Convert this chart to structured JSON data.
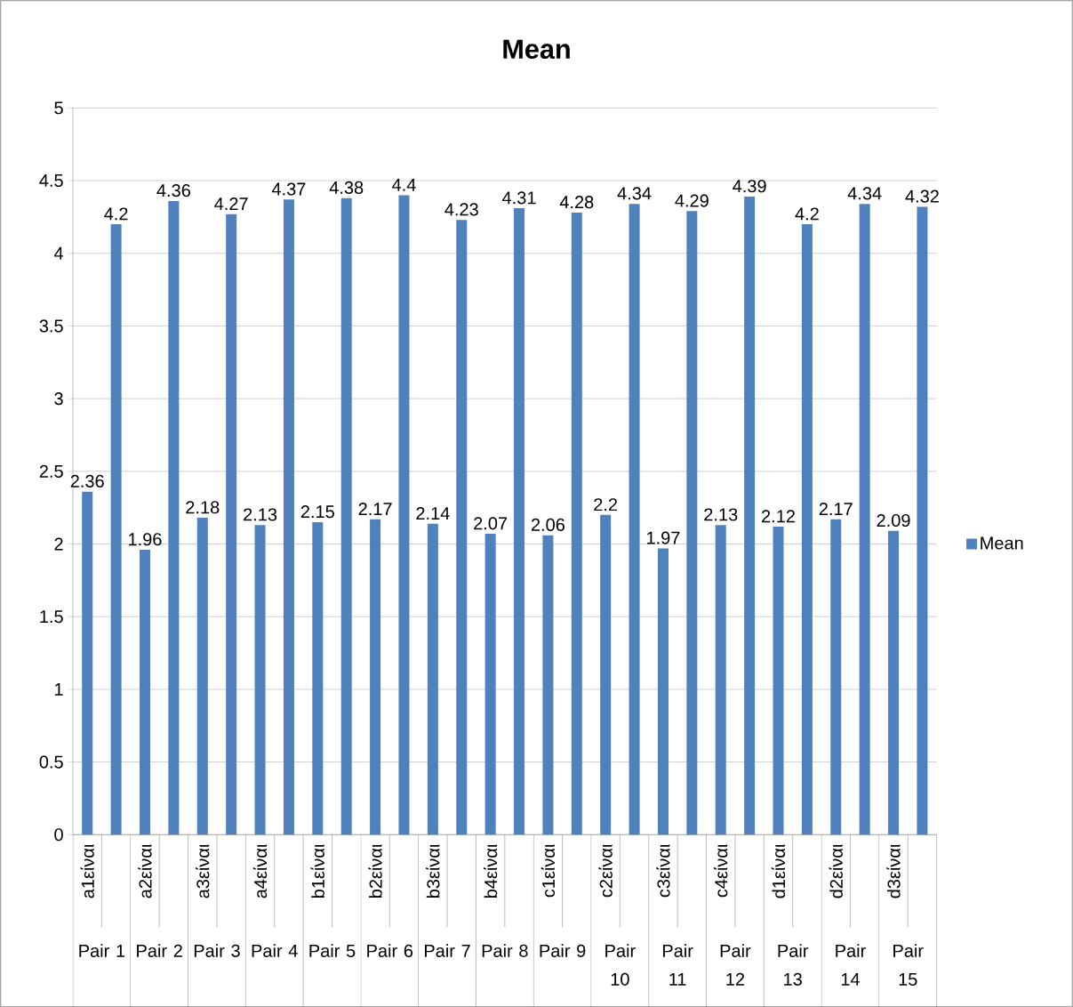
{
  "chart_data": {
    "type": "bar",
    "title": "Mean",
    "categories": [
      "a1είναι",
      null,
      "a2είναι",
      null,
      "a3είναι",
      null,
      "a4είναι",
      null,
      "b1είναι",
      null,
      "b2είναι",
      null,
      "b3είναι",
      null,
      "b4είναι",
      null,
      "c1είναι",
      null,
      "c2είναι",
      null,
      "c3είναι",
      null,
      "c4είναι",
      null,
      "d1είναι",
      null,
      "d2είναι",
      null,
      "d3είναι",
      null
    ],
    "series": [
      {
        "name": "Mean",
        "color": "#4f81bd",
        "values": [
          2.36,
          4.2,
          1.96,
          4.36,
          2.18,
          4.27,
          2.13,
          4.37,
          2.15,
          4.38,
          2.17,
          4.4,
          2.14,
          4.23,
          2.07,
          4.31,
          2.06,
          4.28,
          2.2,
          4.34,
          1.97,
          4.29,
          2.13,
          4.39,
          2.12,
          4.2,
          2.17,
          4.34,
          2.09,
          4.32
        ]
      }
    ],
    "annotations": [
      "Pair 1",
      "Pair 2",
      "Pair 3",
      "Pair 4",
      "Pair 5",
      "Pair 6",
      "Pair 7",
      "Pair 8",
      "Pair 9",
      "Pair 10",
      "Pair 11",
      "Pair 12",
      "Pair 13",
      "Pair 14",
      "Pair 15"
    ],
    "ylim": [
      0,
      5
    ],
    "yticks": [
      0,
      0.5,
      1,
      1.5,
      2,
      2.5,
      3,
      3.5,
      4,
      4.5,
      5
    ],
    "grid": "y",
    "legend": "right",
    "data_labels": true
  }
}
